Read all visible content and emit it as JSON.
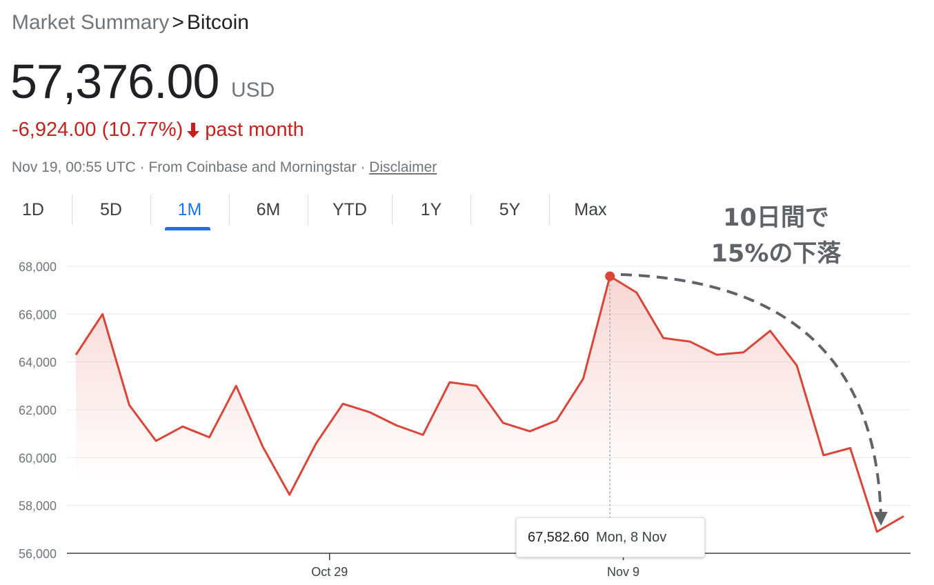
{
  "breadcrumb": {
    "root": "Market Summary",
    "separator": ">",
    "current": "Bitcoin"
  },
  "price": {
    "value": "57,376.00",
    "currency": "USD"
  },
  "change": {
    "amount": "-6,924.00",
    "percent": "(10.77%)",
    "period": "past month",
    "color": "#c5221f",
    "direction_icon": "arrow-down-icon"
  },
  "meta": {
    "timestamp": "Nov 19, 00:55 UTC",
    "source": "From Coinbase and Morningstar",
    "separator": "·",
    "disclaimer": "Disclaimer"
  },
  "tabs": [
    {
      "label": "1D",
      "active": false
    },
    {
      "label": "5D",
      "active": false
    },
    {
      "label": "1M",
      "active": true
    },
    {
      "label": "6M",
      "active": false
    },
    {
      "label": "YTD",
      "active": false
    },
    {
      "label": "1Y",
      "active": false
    },
    {
      "label": "5Y",
      "active": false
    },
    {
      "label": "Max",
      "active": false
    }
  ],
  "annotation": {
    "line1": "10日間で",
    "line2": "15%の下落"
  },
  "tooltip": {
    "value": "67,582.60",
    "date": "Mon, 8 Nov"
  },
  "colors": {
    "accent": "#1a73e8",
    "line": "#db4437",
    "negative": "#c5221f",
    "annotation": "#5f6368"
  },
  "chart_data": {
    "type": "line",
    "title": "",
    "xlabel": "",
    "ylabel": "",
    "ylim": [
      56000,
      68000
    ],
    "yticks": [
      56000,
      58000,
      60000,
      62000,
      64000,
      66000,
      68000
    ],
    "ytick_labels": [
      "56,000",
      "58,000",
      "60,000",
      "62,000",
      "64,000",
      "66,000",
      "68,000"
    ],
    "xticks": [
      {
        "label": "Oct 29",
        "index": 9.5
      },
      {
        "label": "Nov 9",
        "index": 20.5
      }
    ],
    "grid": true,
    "legend": "none",
    "series": [
      {
        "values": [
          64300,
          66000,
          62200,
          60700,
          61300,
          60850,
          63000,
          60450,
          58450,
          60600,
          62250,
          61900,
          61350,
          60950,
          63150,
          63000,
          61450,
          61100,
          61550,
          63300,
          67582.6,
          66900,
          65000,
          64850,
          64300,
          64400,
          65300,
          63850,
          60100,
          60400,
          56900,
          57550
        ]
      }
    ],
    "highlight": {
      "index": 20,
      "value": 67582.6,
      "label": "Mon, 8 Nov"
    }
  }
}
